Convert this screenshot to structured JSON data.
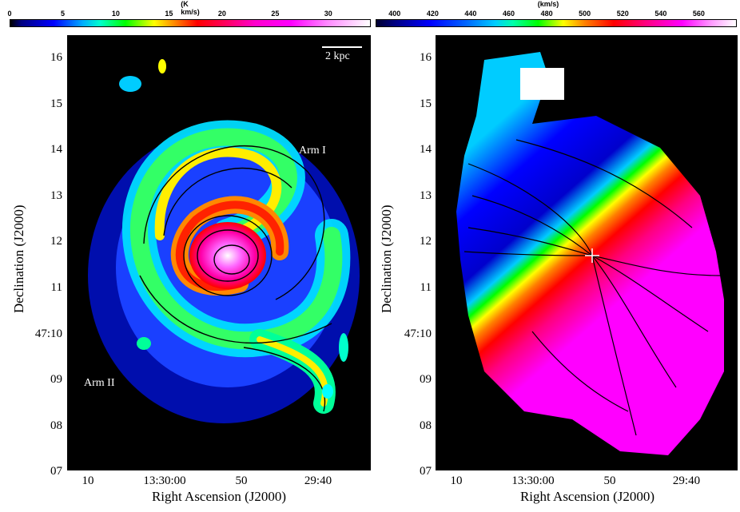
{
  "left_panel": {
    "colorbar": {
      "unit": "(K km/s)",
      "ticks": [
        "0",
        "5",
        "10",
        "15",
        "20",
        "25",
        "30"
      ],
      "tick_values": [
        0,
        5,
        10,
        15,
        20,
        25,
        30
      ],
      "range": [
        0,
        34
      ]
    },
    "y_ticks": [
      "16",
      "15",
      "14",
      "13",
      "12",
      "11",
      "47:10",
      "09",
      "08",
      "07"
    ],
    "x_ticks": [
      "10",
      "13:30:00",
      "50",
      "29:40"
    ],
    "x_label": "Right Ascension (J2000)",
    "y_label": "Declination (J2000)",
    "scale_bar_label": "2 kpc",
    "arm1_label": "Arm I",
    "arm2_label": "Arm II"
  },
  "right_panel": {
    "colorbar": {
      "unit": "(km/s)",
      "ticks": [
        "400",
        "420",
        "440",
        "460",
        "480",
        "500",
        "520",
        "540",
        "560"
      ],
      "tick_values": [
        400,
        420,
        440,
        460,
        480,
        500,
        520,
        540,
        560
      ],
      "range": [
        390,
        580
      ]
    },
    "y_ticks": [
      "16",
      "15",
      "14",
      "13",
      "12",
      "11",
      "47:10",
      "09",
      "08",
      "07"
    ],
    "x_ticks": [
      "10",
      "13:30:00",
      "50",
      "29:40"
    ],
    "x_label": "Right Ascension (J2000)",
    "y_label": "Declination (J2000)"
  },
  "colors": {
    "background": "#000000",
    "rainbow": [
      "#000080",
      "#0000ff",
      "#00aaff",
      "#00ffcc",
      "#00ff00",
      "#ffff00",
      "#ff8000",
      "#ff0000",
      "#ff00aa",
      "#ff00ff",
      "#ffffff"
    ]
  }
}
